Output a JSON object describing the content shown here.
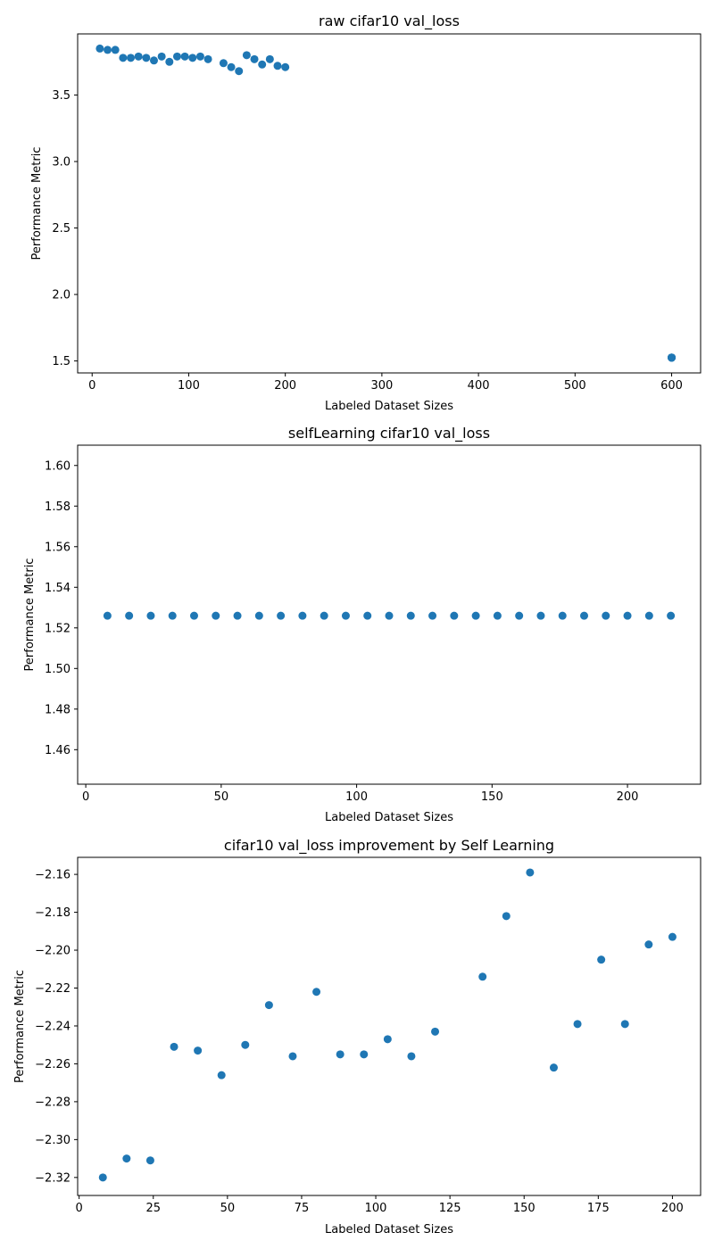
{
  "colors": {
    "point": "#1f77b4",
    "axis": "#000000",
    "background": "#ffffff"
  },
  "chart_data": [
    {
      "type": "scatter",
      "title": "raw cifar10 val_loss",
      "xlabel": "Labeled Dataset Sizes",
      "ylabel": "Performance Metric",
      "xlim": [
        -15,
        630
      ],
      "ylim": [
        1.41,
        3.96
      ],
      "xticks": [
        0,
        100,
        200,
        300,
        400,
        500,
        600
      ],
      "xtick_labels": [
        "0",
        "100",
        "200",
        "300",
        "400",
        "500",
        "600"
      ],
      "yticks": [
        1.5,
        2.0,
        2.5,
        3.0,
        3.5
      ],
      "ytick_labels": [
        "1.5",
        "2.0",
        "2.5",
        "3.0",
        "3.5"
      ],
      "grid": false,
      "series": [
        {
          "x": [
            8,
            16,
            24,
            32,
            40,
            48,
            56,
            64,
            72,
            80,
            88,
            96,
            104,
            112,
            120,
            136,
            144,
            152,
            160,
            168,
            176,
            184,
            192,
            200,
            600,
            600,
            600,
            600,
            600
          ],
          "y": [
            3.85,
            3.84,
            3.84,
            3.78,
            3.78,
            3.79,
            3.78,
            3.76,
            3.79,
            3.75,
            3.79,
            3.79,
            3.78,
            3.79,
            3.77,
            3.74,
            3.71,
            3.68,
            3.8,
            3.77,
            3.73,
            3.77,
            3.72,
            3.71,
            1.525,
            1.525,
            1.526,
            1.524,
            1.525
          ]
        }
      ]
    },
    {
      "type": "scatter",
      "title": "selfLearning cifar10 val_loss",
      "xlabel": "Labeled Dataset Sizes",
      "ylabel": "Performance Metric",
      "xlim": [
        -3,
        227
      ],
      "ylim": [
        1.443,
        1.61
      ],
      "xticks": [
        0,
        50,
        100,
        150,
        200
      ],
      "xtick_labels": [
        "0",
        "50",
        "100",
        "150",
        "200"
      ],
      "yticks": [
        1.46,
        1.48,
        1.5,
        1.52,
        1.54,
        1.56,
        1.58,
        1.6
      ],
      "ytick_labels": [
        "1.46",
        "1.48",
        "1.50",
        "1.52",
        "1.54",
        "1.56",
        "1.58",
        "1.60"
      ],
      "grid": false,
      "series": [
        {
          "x": [
            8,
            16,
            24,
            32,
            40,
            48,
            56,
            64,
            72,
            80,
            88,
            96,
            104,
            112,
            120,
            128,
            136,
            144,
            152,
            160,
            168,
            176,
            184,
            192,
            200,
            208,
            216
          ],
          "y": [
            1.526,
            1.526,
            1.526,
            1.526,
            1.526,
            1.526,
            1.526,
            1.526,
            1.526,
            1.526,
            1.526,
            1.526,
            1.526,
            1.526,
            1.526,
            1.526,
            1.526,
            1.526,
            1.526,
            1.526,
            1.526,
            1.526,
            1.526,
            1.526,
            1.526,
            1.526,
            1.526
          ]
        }
      ]
    },
    {
      "type": "scatter",
      "title": "cifar10 val_loss improvement by Self Learning",
      "xlabel": "Labeled Dataset Sizes",
      "ylabel": "Performance Metric",
      "xlim": [
        -0.5,
        209.5
      ],
      "ylim": [
        -2.3295,
        -2.151
      ],
      "xticks": [
        0,
        25,
        50,
        75,
        100,
        125,
        150,
        175,
        200
      ],
      "xtick_labels": [
        "0",
        "25",
        "50",
        "75",
        "100",
        "125",
        "150",
        "175",
        "200"
      ],
      "yticks": [
        -2.32,
        -2.3,
        -2.28,
        -2.26,
        -2.24,
        -2.22,
        -2.2,
        -2.18,
        -2.16
      ],
      "ytick_labels": [
        "−2.32",
        "−2.30",
        "−2.28",
        "−2.26",
        "−2.24",
        "−2.22",
        "−2.20",
        "−2.18",
        "−2.16"
      ],
      "grid": false,
      "series": [
        {
          "x": [
            8,
            16,
            24,
            32,
            40,
            48,
            56,
            64,
            72,
            80,
            88,
            96,
            104,
            112,
            120,
            136,
            144,
            152,
            160,
            168,
            176,
            184,
            192,
            200
          ],
          "y": [
            -2.32,
            -2.31,
            -2.311,
            -2.251,
            -2.253,
            -2.266,
            -2.25,
            -2.229,
            -2.256,
            -2.222,
            -2.255,
            -2.255,
            -2.247,
            -2.256,
            -2.243,
            -2.214,
            -2.182,
            -2.159,
            -2.262,
            -2.239,
            -2.205,
            -2.239,
            -2.197,
            -2.193
          ]
        }
      ]
    }
  ]
}
